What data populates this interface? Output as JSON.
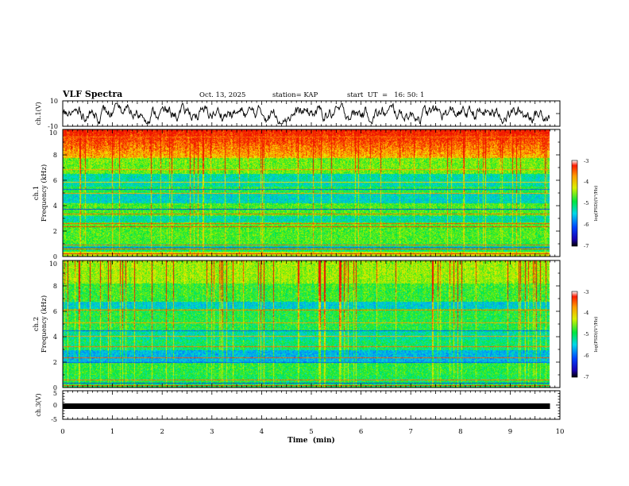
{
  "header": {
    "title": "VLF Spectra",
    "date": "Oct. 13, 2025",
    "station": "station= KAP",
    "start": "start  UT  =   16: 50: 1"
  },
  "chart_data": [
    {
      "type": "line",
      "name": "ch1-waveform",
      "ylabel": "ch.1(V)",
      "ylim": [
        -10,
        10
      ],
      "yticks": [
        -10,
        10
      ],
      "xlim": [
        0,
        10
      ],
      "series_summary": "noisy signal mostly between -6 and 6 V",
      "data_end_min": 9.8
    },
    {
      "type": "heatmap",
      "name": "ch1-spectrogram",
      "ylabel_line1": "ch.1",
      "ylabel_line2": "Frequency (kHz)",
      "ylim": [
        0,
        10
      ],
      "yticks": [
        "0",
        "2",
        "4",
        "6",
        "8",
        "10"
      ],
      "xlim": [
        0,
        10
      ],
      "data_end_min": 9.8,
      "colorbar": {
        "label": "log(PSD)(V²/Hz)",
        "range": [
          -7,
          -3
        ],
        "ticks": [
          "-3",
          "-4",
          "-5",
          "-6",
          "-7"
        ]
      }
    },
    {
      "type": "heatmap",
      "name": "ch2-spectrogram",
      "ylabel_line1": "ch.2",
      "ylabel_line2": "Frequency (kHz)",
      "ylim": [
        0,
        10
      ],
      "yticks": [
        "0",
        "2",
        "4",
        "6",
        "8",
        "10"
      ],
      "xlim": [
        0,
        10
      ],
      "data_end_min": 9.8,
      "colorbar": {
        "label": "log(PSD)(V²/Hz)",
        "range": [
          -7,
          -3
        ],
        "ticks": [
          "-3",
          "-4",
          "-5",
          "-6",
          "-7"
        ]
      }
    },
    {
      "type": "line",
      "name": "ch3-waveform",
      "ylabel": "ch.3(V)",
      "ylim": [
        -5,
        5
      ],
      "yticks": [
        "5",
        "0",
        "-5"
      ],
      "xlim": [
        0,
        10
      ],
      "series_summary": "constant dense band near -1 V",
      "data_end_min": 9.8
    }
  ],
  "xaxis": {
    "label": "Time  (min)",
    "ticks": [
      "0",
      "1",
      "2",
      "3",
      "4",
      "5",
      "6",
      "7",
      "8",
      "9",
      "10"
    ]
  },
  "colors": {
    "waveform": "#000000",
    "background": "#ffffff"
  }
}
